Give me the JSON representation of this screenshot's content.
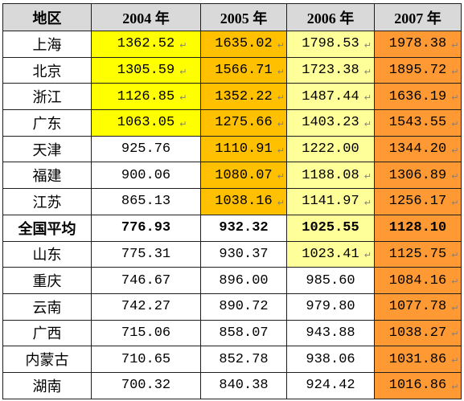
{
  "table": {
    "header": {
      "region_label": "地区",
      "year_labels": [
        "2004 年",
        "2005 年",
        "2006 年",
        "2007 年"
      ]
    },
    "colors": {
      "header_fill": "#D9D9D9",
      "default_fill": "#FFFFFF",
      "column_highlight_fills": [
        "#FFFF00",
        "#FFC000",
        "#FFFF99",
        "#FF9933"
      ]
    },
    "icons": {
      "paragraph_mark": "paragraph-mark-icon"
    },
    "rows": [
      {
        "region": "上海",
        "values": [
          "1362.52",
          "1635.02",
          "1798.53",
          "1978.38"
        ],
        "highlighted": [
          true,
          true,
          true,
          true
        ],
        "paragraph_marks": [
          true,
          true,
          true,
          true
        ],
        "bold": false
      },
      {
        "region": "北京",
        "values": [
          "1305.59",
          "1566.71",
          "1723.38",
          "1895.72"
        ],
        "highlighted": [
          true,
          true,
          true,
          true
        ],
        "paragraph_marks": [
          true,
          true,
          true,
          true
        ],
        "bold": false
      },
      {
        "region": "浙江",
        "values": [
          "1126.85",
          "1352.22",
          "1487.44",
          "1636.19"
        ],
        "highlighted": [
          true,
          true,
          true,
          true
        ],
        "paragraph_marks": [
          true,
          true,
          true,
          true
        ],
        "bold": false
      },
      {
        "region": "广东",
        "values": [
          "1063.05",
          "1275.66",
          "1403.23",
          "1543.55"
        ],
        "highlighted": [
          true,
          true,
          true,
          true
        ],
        "paragraph_marks": [
          true,
          true,
          true,
          true
        ],
        "bold": false
      },
      {
        "region": "天津",
        "values": [
          "925.76",
          "1110.91",
          "1222.00",
          "1344.20"
        ],
        "highlighted": [
          false,
          true,
          true,
          true
        ],
        "paragraph_marks": [
          false,
          true,
          false,
          true
        ],
        "bold": false
      },
      {
        "region": "福建",
        "values": [
          "900.06",
          "1080.07",
          "1188.08",
          "1306.89"
        ],
        "highlighted": [
          false,
          true,
          true,
          true
        ],
        "paragraph_marks": [
          false,
          true,
          true,
          true
        ],
        "bold": false
      },
      {
        "region": "江苏",
        "values": [
          "865.13",
          "1038.16",
          "1141.97",
          "1256.17"
        ],
        "highlighted": [
          false,
          true,
          true,
          true
        ],
        "paragraph_marks": [
          false,
          true,
          true,
          true
        ],
        "bold": false
      },
      {
        "region": "全国平均",
        "values": [
          "776.93",
          "932.32",
          "1025.55",
          "1128.10"
        ],
        "highlighted": [
          false,
          false,
          true,
          true
        ],
        "paragraph_marks": [
          false,
          false,
          false,
          false
        ],
        "bold": true
      },
      {
        "region": "山东",
        "values": [
          "775.31",
          "930.37",
          "1023.41",
          "1125.75"
        ],
        "highlighted": [
          false,
          false,
          true,
          true
        ],
        "paragraph_marks": [
          false,
          false,
          true,
          true
        ],
        "bold": false
      },
      {
        "region": "重庆",
        "values": [
          "746.67",
          "896.00",
          "985.60",
          "1084.16"
        ],
        "highlighted": [
          false,
          false,
          false,
          true
        ],
        "paragraph_marks": [
          false,
          false,
          false,
          true
        ],
        "bold": false
      },
      {
        "region": "云南",
        "values": [
          "742.27",
          "890.72",
          "979.80",
          "1077.78"
        ],
        "highlighted": [
          false,
          false,
          false,
          true
        ],
        "paragraph_marks": [
          false,
          false,
          false,
          true
        ],
        "bold": false
      },
      {
        "region": "广西",
        "values": [
          "715.06",
          "858.07",
          "943.88",
          "1038.27"
        ],
        "highlighted": [
          false,
          false,
          false,
          true
        ],
        "paragraph_marks": [
          false,
          false,
          false,
          true
        ],
        "bold": false
      },
      {
        "region": "内蒙古",
        "values": [
          "710.65",
          "852.78",
          "938.06",
          "1031.86"
        ],
        "highlighted": [
          false,
          false,
          false,
          true
        ],
        "paragraph_marks": [
          false,
          false,
          false,
          true
        ],
        "bold": false
      },
      {
        "region": "湖南",
        "values": [
          "700.32",
          "840.38",
          "924.42",
          "1016.86"
        ],
        "highlighted": [
          false,
          false,
          false,
          true
        ],
        "paragraph_marks": [
          false,
          false,
          false,
          true
        ],
        "bold": false
      }
    ]
  }
}
